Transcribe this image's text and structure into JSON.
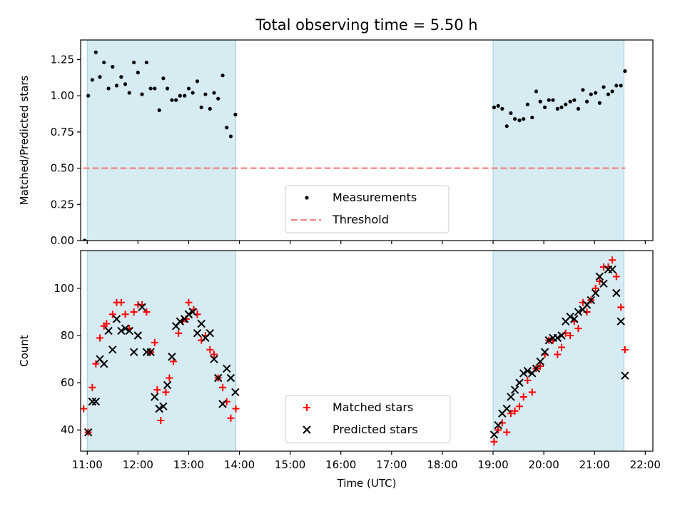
{
  "title": "Total observing time = 5.50 h",
  "chart_data": [
    {
      "type": "scatter",
      "ylabel": "Matched/Predicted stars",
      "xlabel": "",
      "xlim": [
        10.87,
        22.15
      ],
      "ylim": [
        0,
        1.385
      ],
      "yticks": [
        "0.00",
        "0.25",
        "0.50",
        "0.75",
        "1.00",
        "1.25"
      ],
      "ytick_values": [
        0,
        0.25,
        0.5,
        0.75,
        1.0,
        1.25
      ],
      "shaded_intervals": [
        [
          11.0,
          13.93
        ],
        [
          19.0,
          21.58
        ]
      ],
      "threshold": {
        "name": "Threshold",
        "value": 0.5,
        "x_range": [
          10.92,
          21.6
        ],
        "color": "#f08080",
        "style": "dashed"
      },
      "legend": {
        "placement": "lower center",
        "entries": [
          "Measurements",
          "Threshold"
        ]
      },
      "series": [
        {
          "name": "Measurements",
          "marker": "dot",
          "color": "#000000",
          "points": [
            [
              10.95,
              0.0
            ],
            [
              11.02,
              1.0
            ],
            [
              11.1,
              1.11
            ],
            [
              11.17,
              1.3
            ],
            [
              11.25,
              1.13
            ],
            [
              11.33,
              1.23
            ],
            [
              11.42,
              1.05
            ],
            [
              11.5,
              1.2
            ],
            [
              11.58,
              1.07
            ],
            [
              11.67,
              1.13
            ],
            [
              11.75,
              1.08
            ],
            [
              11.83,
              1.02
            ],
            [
              11.92,
              1.23
            ],
            [
              12.0,
              1.16
            ],
            [
              12.08,
              1.01
            ],
            [
              12.17,
              1.23
            ],
            [
              12.25,
              1.05
            ],
            [
              12.33,
              1.05
            ],
            [
              12.42,
              0.9
            ],
            [
              12.5,
              1.12
            ],
            [
              12.58,
              1.05
            ],
            [
              12.67,
              0.97
            ],
            [
              12.75,
              0.97
            ],
            [
              12.83,
              1.0
            ],
            [
              12.92,
              1.0
            ],
            [
              13.0,
              1.05
            ],
            [
              13.08,
              1.02
            ],
            [
              13.17,
              1.1
            ],
            [
              13.25,
              0.92
            ],
            [
              13.33,
              1.01
            ],
            [
              13.42,
              0.91
            ],
            [
              13.5,
              1.02
            ],
            [
              13.58,
              0.98
            ],
            [
              13.67,
              1.14
            ],
            [
              13.75,
              0.78
            ],
            [
              13.83,
              0.72
            ],
            [
              13.92,
              0.87
            ],
            [
              19.02,
              0.92
            ],
            [
              19.1,
              0.93
            ],
            [
              19.18,
              0.91
            ],
            [
              19.27,
              0.79
            ],
            [
              19.35,
              0.88
            ],
            [
              19.43,
              0.84
            ],
            [
              19.52,
              0.83
            ],
            [
              19.6,
              0.84
            ],
            [
              19.68,
              0.94
            ],
            [
              19.77,
              0.85
            ],
            [
              19.85,
              1.03
            ],
            [
              19.93,
              0.96
            ],
            [
              20.02,
              0.92
            ],
            [
              20.1,
              0.97
            ],
            [
              20.18,
              0.97
            ],
            [
              20.27,
              0.91
            ],
            [
              20.35,
              0.92
            ],
            [
              20.43,
              0.94
            ],
            [
              20.52,
              0.96
            ],
            [
              20.6,
              0.97
            ],
            [
              20.68,
              0.91
            ],
            [
              20.77,
              1.04
            ],
            [
              20.85,
              0.96
            ],
            [
              20.93,
              1.01
            ],
            [
              21.02,
              1.02
            ],
            [
              21.1,
              0.95
            ],
            [
              21.18,
              1.06
            ],
            [
              21.27,
              1.01
            ],
            [
              21.35,
              1.03
            ],
            [
              21.43,
              1.07
            ],
            [
              21.52,
              1.07
            ],
            [
              21.6,
              1.17
            ]
          ]
        }
      ]
    },
    {
      "type": "scatter",
      "ylabel": "Count",
      "xlabel": "Time (UTC)",
      "xlim": [
        10.87,
        22.15
      ],
      "ylim": [
        31,
        116
      ],
      "yticks": [
        "40",
        "60",
        "80",
        "100"
      ],
      "ytick_values": [
        40,
        60,
        80,
        100
      ],
      "xticks": [
        "11:00",
        "12:00",
        "13:00",
        "14:00",
        "15:00",
        "16:00",
        "17:00",
        "18:00",
        "19:00",
        "20:00",
        "21:00",
        "22:00"
      ],
      "xtick_values": [
        11,
        12,
        13,
        14,
        15,
        16,
        17,
        18,
        19,
        20,
        21,
        22
      ],
      "shaded_intervals": [
        [
          11.0,
          13.93
        ],
        [
          19.0,
          21.58
        ]
      ],
      "legend": {
        "placement": "lower center",
        "entries": [
          "Matched stars",
          "Predicted stars"
        ]
      },
      "series": [
        {
          "name": "Matched stars",
          "marker": "plus",
          "color": "#ff0000",
          "points": [
            [
              10.93,
              49
            ],
            [
              11.02,
              39
            ],
            [
              11.1,
              58
            ],
            [
              11.17,
              68
            ],
            [
              11.25,
              79
            ],
            [
              11.33,
              84
            ],
            [
              11.38,
              85
            ],
            [
              11.5,
              89
            ],
            [
              11.58,
              94
            ],
            [
              11.67,
              94
            ],
            [
              11.75,
              89
            ],
            [
              11.83,
              83
            ],
            [
              11.92,
              90
            ],
            [
              12.0,
              93
            ],
            [
              12.08,
              93
            ],
            [
              12.17,
              90
            ],
            [
              12.25,
              73
            ],
            [
              12.33,
              77
            ],
            [
              12.38,
              57
            ],
            [
              12.45,
              44
            ],
            [
              12.55,
              56
            ],
            [
              12.62,
              62
            ],
            [
              12.7,
              69
            ],
            [
              12.8,
              81
            ],
            [
              12.88,
              86
            ],
            [
              12.95,
              87
            ],
            [
              13.0,
              94
            ],
            [
              13.1,
              91
            ],
            [
              13.17,
              89
            ],
            [
              13.25,
              78
            ],
            [
              13.33,
              80
            ],
            [
              13.42,
              74
            ],
            [
              13.5,
              72
            ],
            [
              13.58,
              62
            ],
            [
              13.67,
              58
            ],
            [
              13.75,
              52
            ],
            [
              13.83,
              45
            ],
            [
              13.93,
              49
            ],
            [
              19.02,
              35
            ],
            [
              19.1,
              40
            ],
            [
              19.18,
              43
            ],
            [
              19.27,
              39
            ],
            [
              19.35,
              47
            ],
            [
              19.43,
              48
            ],
            [
              19.52,
              50
            ],
            [
              19.6,
              54
            ],
            [
              19.68,
              61
            ],
            [
              19.77,
              56
            ],
            [
              19.85,
              66
            ],
            [
              19.93,
              67
            ],
            [
              20.02,
              72
            ],
            [
              20.1,
              78
            ],
            [
              20.18,
              78
            ],
            [
              20.27,
              72
            ],
            [
              20.35,
              75
            ],
            [
              20.43,
              81
            ],
            [
              20.52,
              80
            ],
            [
              20.6,
              86
            ],
            [
              20.68,
              83
            ],
            [
              20.77,
              94
            ],
            [
              20.85,
              90
            ],
            [
              20.93,
              95
            ],
            [
              21.02,
              100
            ],
            [
              21.1,
              103
            ],
            [
              21.18,
              109
            ],
            [
              21.27,
              109
            ],
            [
              21.35,
              112
            ],
            [
              21.43,
              105
            ],
            [
              21.52,
              92
            ],
            [
              21.6,
              74
            ]
          ]
        },
        {
          "name": "Predicted stars",
          "marker": "x",
          "color": "#000000",
          "points": [
            [
              11.02,
              39
            ],
            [
              11.1,
              52
            ],
            [
              11.17,
              52
            ],
            [
              11.25,
              70
            ],
            [
              11.33,
              68
            ],
            [
              11.42,
              82
            ],
            [
              11.5,
              74
            ],
            [
              11.58,
              87
            ],
            [
              11.67,
              82
            ],
            [
              11.75,
              83
            ],
            [
              11.83,
              82
            ],
            [
              11.92,
              73
            ],
            [
              12.0,
              80
            ],
            [
              12.08,
              92
            ],
            [
              12.17,
              73
            ],
            [
              12.25,
              73
            ],
            [
              12.33,
              54
            ],
            [
              12.42,
              49
            ],
            [
              12.5,
              50
            ],
            [
              12.58,
              59
            ],
            [
              12.67,
              71
            ],
            [
              12.75,
              84
            ],
            [
              12.83,
              86
            ],
            [
              12.92,
              87
            ],
            [
              13.0,
              89
            ],
            [
              13.08,
              90
            ],
            [
              13.17,
              81
            ],
            [
              13.25,
              85
            ],
            [
              13.33,
              79
            ],
            [
              13.42,
              81
            ],
            [
              13.5,
              70
            ],
            [
              13.58,
              62
            ],
            [
              13.67,
              51
            ],
            [
              13.75,
              66
            ],
            [
              13.83,
              62
            ],
            [
              13.92,
              56
            ],
            [
              19.02,
              38
            ],
            [
              19.1,
              42
            ],
            [
              19.18,
              47
            ],
            [
              19.27,
              49
            ],
            [
              19.35,
              54
            ],
            [
              19.43,
              57
            ],
            [
              19.52,
              60
            ],
            [
              19.6,
              64
            ],
            [
              19.68,
              65
            ],
            [
              19.77,
              64
            ],
            [
              19.85,
              66
            ],
            [
              19.93,
              69
            ],
            [
              20.02,
              73
            ],
            [
              20.1,
              78
            ],
            [
              20.18,
              79
            ],
            [
              20.27,
              79
            ],
            [
              20.35,
              80
            ],
            [
              20.43,
              86
            ],
            [
              20.52,
              88
            ],
            [
              20.6,
              87
            ],
            [
              20.68,
              90
            ],
            [
              20.77,
              91
            ],
            [
              20.85,
              93
            ],
            [
              20.93,
              95
            ],
            [
              21.02,
              98
            ],
            [
              21.1,
              105
            ],
            [
              21.18,
              102
            ],
            [
              21.27,
              108
            ],
            [
              21.35,
              108
            ],
            [
              21.43,
              98
            ],
            [
              21.52,
              86
            ],
            [
              21.6,
              63
            ]
          ]
        }
      ]
    }
  ]
}
